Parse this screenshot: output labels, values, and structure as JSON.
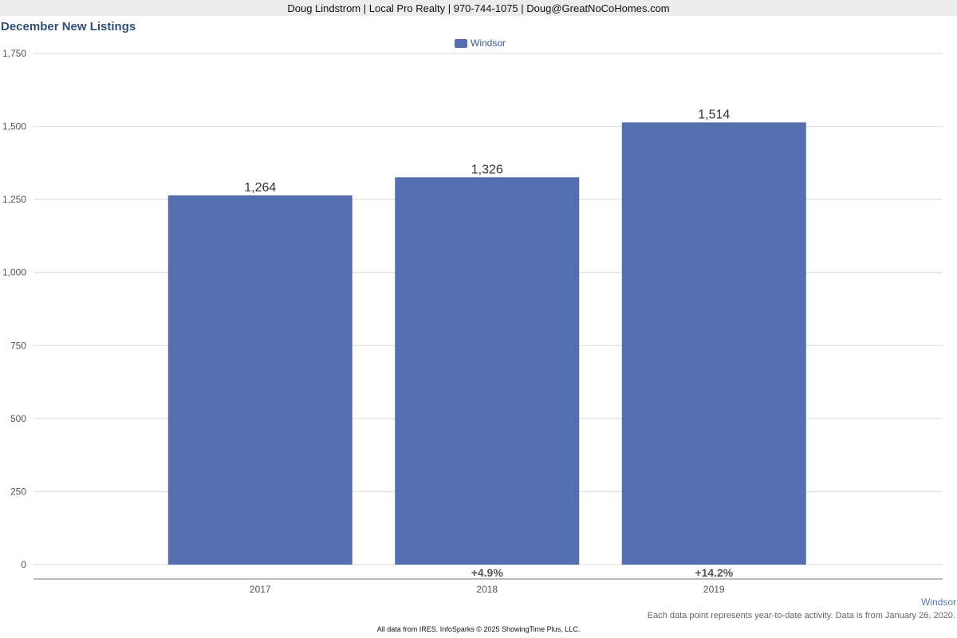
{
  "header": {
    "text": "Doug Lindstrom | Local Pro Realty | 970-744-1075 | Doug@GreatNoCoHomes.com"
  },
  "footer": {
    "region": "Windsor",
    "note": "Each data point represents year-to-date activity. Data is from January 26, 2020.",
    "credit": "All data from IRES. InfoSparks © 2025 ShowingTime Plus, LLC."
  },
  "colors": {
    "bar": "#546eb0",
    "title": "#2e4f73",
    "grid": "#d9d9d9",
    "axis_text": "#555555"
  },
  "chart_data": {
    "type": "bar",
    "title": "December New Listings",
    "legend": {
      "position": "top-center",
      "entries": [
        "Windsor"
      ]
    },
    "categories": [
      "2017",
      "2018",
      "2019"
    ],
    "series": [
      {
        "name": "Windsor",
        "values": [
          1264,
          1326,
          1514
        ],
        "value_labels": [
          "1,264",
          "1,326",
          "1,514"
        ],
        "change_labels": [
          "",
          "+4.9%",
          "+14.2%"
        ]
      }
    ],
    "xlabel": "",
    "ylabel": "",
    "ylim": [
      0,
      1750
    ],
    "yticks": [
      0,
      250,
      500,
      750,
      1000,
      1250,
      1500,
      1750
    ],
    "ytick_labels": [
      "0",
      "250",
      "500",
      "750",
      "1,000",
      "1,250",
      "1,500",
      "1,750"
    ],
    "grid": true
  }
}
